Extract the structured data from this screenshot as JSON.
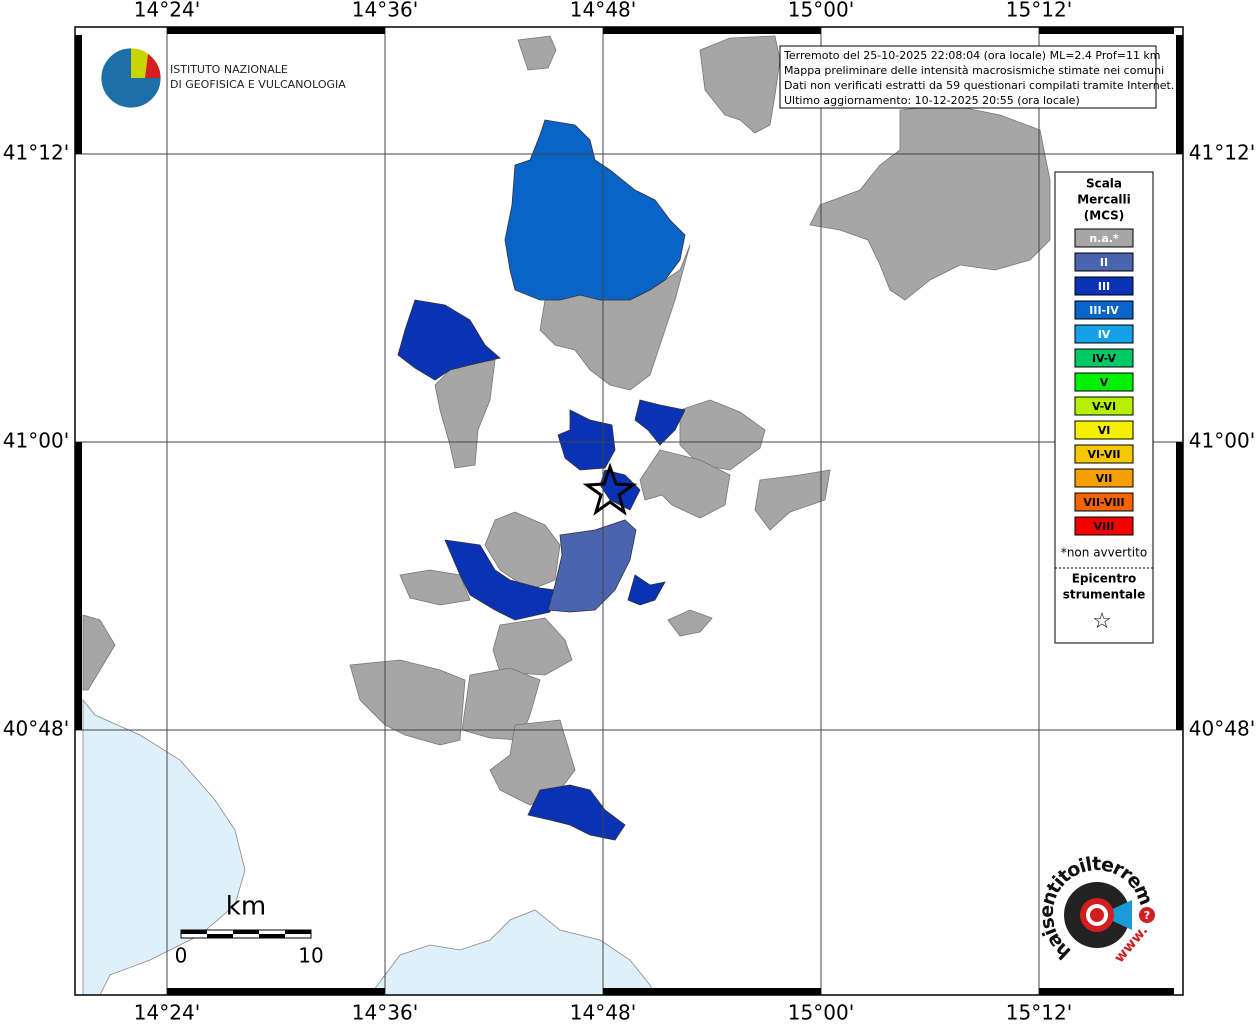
{
  "info_box": {
    "lines": [
      "Terremoto del 25-10-2025 22:08:04 (ora locale) ML=2.4 Prof=11 km",
      "Mappa preliminare delle intensità macrosismiche stimate nei comuni",
      "Dati non verificati estratti da 59 questionari compilati tramite Internet.",
      "Ultimo aggiornamento: 10-12-2025 20:55 (ora locale)"
    ]
  },
  "logo": {
    "lines": [
      "ISTITUTO NAZIONALE",
      "DI GEOFISICA E VULCANOLOGIA"
    ]
  },
  "lon_labels": [
    "14°24'",
    "14°36'",
    "14°48'",
    "15°00'",
    "15°12'"
  ],
  "lat_labels": [
    "41°12'",
    "41°00'",
    "40°48'"
  ],
  "legend": {
    "title": [
      "Scala",
      "Mercalli",
      "(MCS)"
    ],
    "items": [
      {
        "label": "n.a.*",
        "color": "#a6a6a6",
        "text_color": "#ffffff"
      },
      {
        "label": "II",
        "color": "#4a64b0",
        "text_color": "#ffffff"
      },
      {
        "label": "III",
        "color": "#0a32b4",
        "text_color": "#ffffff"
      },
      {
        "label": "III-IV",
        "color": "#0a64c8",
        "text_color": "#ffffff"
      },
      {
        "label": "IV",
        "color": "#14a0e6",
        "text_color": "#ffffff"
      },
      {
        "label": "IV-V",
        "color": "#00c864",
        "text_color": "#000000"
      },
      {
        "label": "V",
        "color": "#00f000",
        "text_color": "#000000"
      },
      {
        "label": "V-VI",
        "color": "#b4f000",
        "text_color": "#000000"
      },
      {
        "label": "VI",
        "color": "#f5f000",
        "text_color": "#000000"
      },
      {
        "label": "VI-VII",
        "color": "#f5c800",
        "text_color": "#000000"
      },
      {
        "label": "VII",
        "color": "#f5a000",
        "text_color": "#000000"
      },
      {
        "label": "VII-VIII",
        "color": "#f56400",
        "text_color": "#000000"
      },
      {
        "label": "VIII",
        "color": "#f50000",
        "text_color": "#000000"
      }
    ],
    "note": "*non avvertito",
    "epicenter": [
      "Epicentro",
      "strumentale"
    ],
    "star": "☆"
  },
  "scale_bar": {
    "unit": "km",
    "start": "0",
    "end": "10"
  },
  "site_logo": {
    "text": "haisentitoilterremoto.it",
    "www": "www.",
    "mark": "?"
  }
}
